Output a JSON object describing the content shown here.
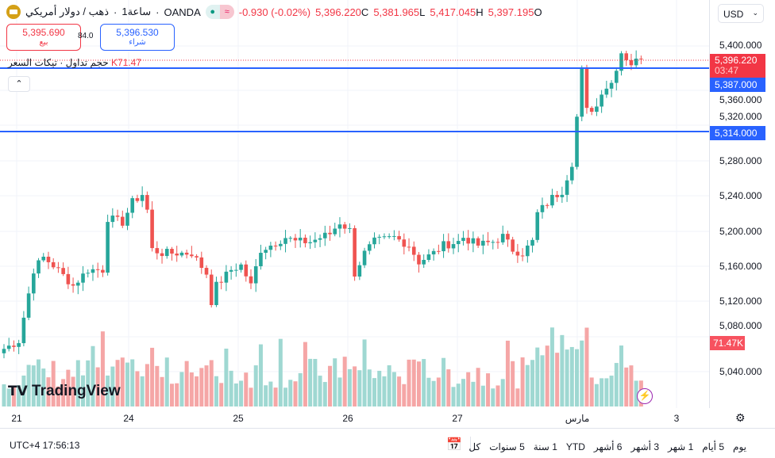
{
  "header": {
    "symbol": "ذهب / دولار أمريكي",
    "interval": "1ساعة",
    "exchange": "OANDA",
    "change": "-0.930 (-0.02%)",
    "close": "5,396.220",
    "close_key": "C",
    "low": "5,381.965",
    "low_key": "L",
    "high": "5,417.045",
    "high_key": "H",
    "open": "5,397.195",
    "open_key": "O",
    "sep": "·"
  },
  "trade": {
    "sell_price": "5,395.690",
    "sell_label": "بيع",
    "spread": "84.0",
    "buy_price": "5,396.530",
    "buy_label": "شراء"
  },
  "indicator": {
    "name": "حجم تداول · تيكات السعر",
    "value": "K71.47"
  },
  "currency": "USD",
  "price_axis": {
    "labels": [
      "5,400.000",
      "5,360.000",
      "5,320.000",
      "5,280.000",
      "5,240.000",
      "5,200.000",
      "5,160.000",
      "5,120.000",
      "5,080.000",
      "5,040.000"
    ],
    "last_price": "5,396.220",
    "countdown": "03:47",
    "line1": "5,387.000",
    "line2": "5,314.000",
    "volume_tag": "71.47K"
  },
  "time_axis": [
    "21",
    "24",
    "25",
    "26",
    "27",
    "مارس",
    "3"
  ],
  "brand": "TradingView",
  "bottom": {
    "clock": "UTC+4 17:56:13",
    "ranges": [
      "يوم",
      "5 أيام",
      "1 شهر",
      "3 أشهر",
      "6 أشهر",
      "YTD",
      "1 سنة",
      "5 سنوات",
      "كل"
    ]
  },
  "colors": {
    "up": "#26a69a",
    "down": "#ef5350",
    "line": "#2962ff",
    "last": "#f23645"
  },
  "chart_data": {
    "type": "candlestick",
    "y_range": [
      5000,
      5440
    ],
    "anchors": [
      [
        0,
        5066
      ],
      [
        3,
        5075
      ],
      [
        4,
        5102
      ],
      [
        6,
        5156
      ],
      [
        8,
        5170
      ],
      [
        10,
        5161
      ],
      [
        14,
        5138
      ],
      [
        17,
        5156
      ],
      [
        20,
        5156
      ],
      [
        21,
        5215
      ],
      [
        24,
        5210
      ],
      [
        26,
        5233
      ],
      [
        28,
        5242
      ],
      [
        29,
        5224
      ],
      [
        30,
        5179
      ],
      [
        32,
        5175
      ],
      [
        38,
        5175
      ],
      [
        41,
        5152
      ],
      [
        42,
        5120
      ],
      [
        43,
        5138
      ],
      [
        46,
        5156
      ],
      [
        48,
        5161
      ],
      [
        50,
        5138
      ],
      [
        52,
        5179
      ],
      [
        54,
        5184
      ],
      [
        57,
        5193
      ],
      [
        59,
        5188
      ],
      [
        62,
        5188
      ],
      [
        66,
        5197
      ],
      [
        68,
        5210
      ],
      [
        70,
        5201
      ],
      [
        71,
        5152
      ],
      [
        73,
        5175
      ],
      [
        75,
        5188
      ],
      [
        79,
        5193
      ],
      [
        82,
        5184
      ],
      [
        84,
        5165
      ],
      [
        87,
        5175
      ],
      [
        89,
        5184
      ],
      [
        92,
        5188
      ],
      [
        93,
        5193
      ],
      [
        96,
        5184
      ],
      [
        99,
        5188
      ],
      [
        101,
        5194
      ],
      [
        103,
        5179
      ],
      [
        105,
        5175
      ],
      [
        107,
        5188
      ],
      [
        108,
        5220
      ],
      [
        111,
        5238
      ],
      [
        113,
        5246
      ],
      [
        115,
        5278
      ],
      [
        117,
        5382
      ],
      [
        118,
        5337
      ],
      [
        120,
        5342
      ],
      [
        121,
        5360
      ],
      [
        123,
        5369
      ],
      [
        124,
        5387
      ],
      [
        125,
        5404
      ],
      [
        127,
        5391
      ],
      [
        129,
        5396.22
      ]
    ],
    "volume_max_k": 115
  }
}
